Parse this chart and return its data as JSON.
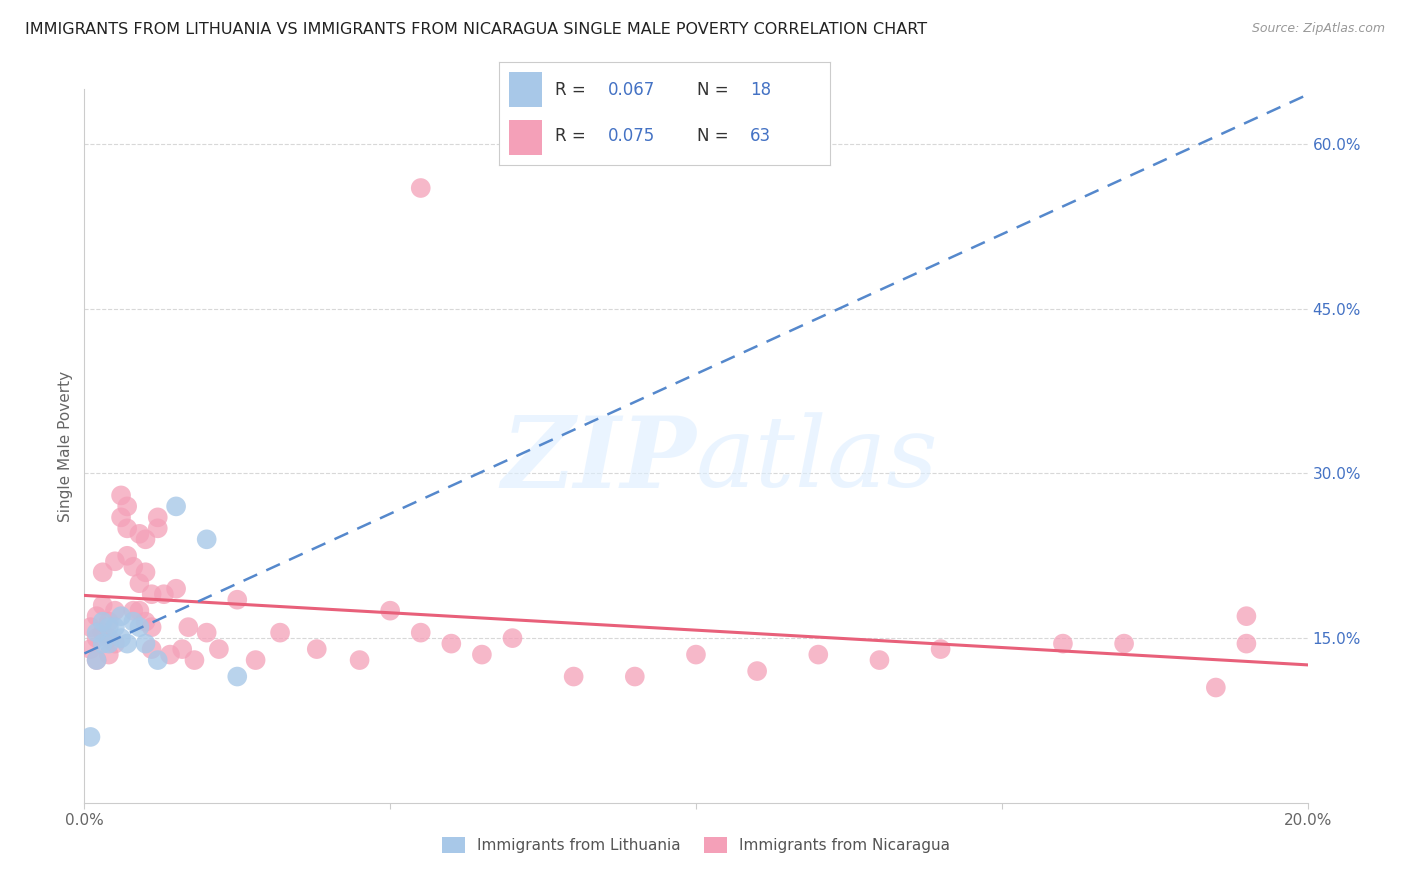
{
  "title": "IMMIGRANTS FROM LITHUANIA VS IMMIGRANTS FROM NICARAGUA SINGLE MALE POVERTY CORRELATION CHART",
  "source": "Source: ZipAtlas.com",
  "ylabel": "Single Male Poverty",
  "xlim": [
    0.0,
    0.2
  ],
  "ylim": [
    0.0,
    0.65
  ],
  "xticks": [
    0.0,
    0.05,
    0.1,
    0.15,
    0.2
  ],
  "xticklabels": [
    "0.0%",
    "",
    "",
    "",
    "20.0%"
  ],
  "yticks_right": [
    0.15,
    0.3,
    0.45,
    0.6
  ],
  "ytick_right_labels": [
    "15.0%",
    "30.0%",
    "45.0%",
    "60.0%"
  ],
  "legend_R1": "0.067",
  "legend_N1": "18",
  "legend_R2": "0.075",
  "legend_N2": "63",
  "color_lithuania": "#a8c8e8",
  "color_nicaragua": "#f4a0b8",
  "color_line_lithuania": "#5588cc",
  "color_line_nicaragua": "#e8607a",
  "color_right_axis": "#4472c4",
  "lithuania_x": [
    0.001,
    0.002,
    0.002,
    0.003,
    0.003,
    0.004,
    0.004,
    0.005,
    0.006,
    0.006,
    0.007,
    0.008,
    0.009,
    0.01,
    0.012,
    0.015,
    0.02,
    0.025
  ],
  "lithuania_y": [
    0.06,
    0.13,
    0.155,
    0.145,
    0.165,
    0.145,
    0.16,
    0.16,
    0.15,
    0.17,
    0.145,
    0.165,
    0.16,
    0.145,
    0.13,
    0.27,
    0.24,
    0.115
  ],
  "nicaragua_x": [
    0.001,
    0.001,
    0.002,
    0.002,
    0.002,
    0.003,
    0.003,
    0.003,
    0.004,
    0.004,
    0.004,
    0.005,
    0.005,
    0.005,
    0.006,
    0.006,
    0.007,
    0.007,
    0.007,
    0.008,
    0.008,
    0.009,
    0.009,
    0.009,
    0.01,
    0.01,
    0.01,
    0.011,
    0.011,
    0.011,
    0.012,
    0.012,
    0.013,
    0.014,
    0.015,
    0.016,
    0.017,
    0.018,
    0.02,
    0.022,
    0.025,
    0.028,
    0.032,
    0.038,
    0.045,
    0.05,
    0.055,
    0.06,
    0.065,
    0.07,
    0.08,
    0.09,
    0.1,
    0.11,
    0.12,
    0.13,
    0.14,
    0.16,
    0.17,
    0.185,
    0.19,
    0.19,
    0.055
  ],
  "nicaragua_y": [
    0.14,
    0.16,
    0.15,
    0.13,
    0.17,
    0.155,
    0.18,
    0.21,
    0.15,
    0.135,
    0.165,
    0.175,
    0.145,
    0.22,
    0.26,
    0.28,
    0.25,
    0.225,
    0.27,
    0.175,
    0.215,
    0.2,
    0.175,
    0.245,
    0.165,
    0.21,
    0.24,
    0.14,
    0.16,
    0.19,
    0.26,
    0.25,
    0.19,
    0.135,
    0.195,
    0.14,
    0.16,
    0.13,
    0.155,
    0.14,
    0.185,
    0.13,
    0.155,
    0.14,
    0.13,
    0.175,
    0.155,
    0.145,
    0.135,
    0.15,
    0.115,
    0.115,
    0.135,
    0.12,
    0.135,
    0.13,
    0.14,
    0.145,
    0.145,
    0.105,
    0.145,
    0.17,
    0.56
  ],
  "background_color": "#ffffff",
  "grid_color": "#d8d8d8"
}
